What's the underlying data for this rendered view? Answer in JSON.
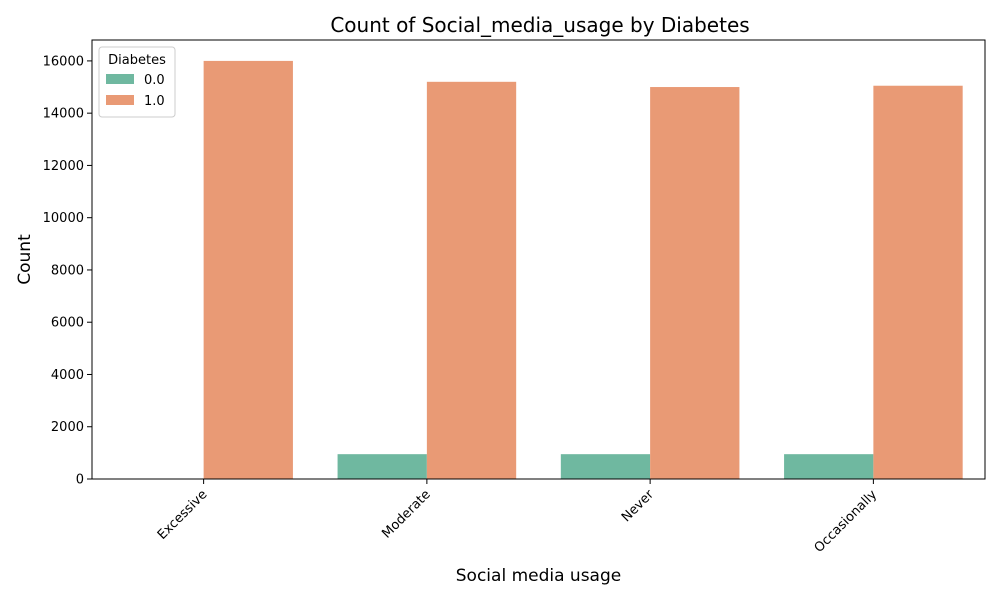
{
  "chart_data": {
    "type": "bar",
    "title": "Count of Social_media_usage by Diabetes",
    "xlabel": "Social media usage",
    "ylabel": "Count",
    "categories": [
      "Excessive",
      "Moderate",
      "Never",
      "Occasionally"
    ],
    "series": [
      {
        "name": "0.0",
        "color": "#6fb8a0",
        "values": [
          0,
          950,
          950,
          950
        ]
      },
      {
        "name": "1.0",
        "color": "#e99a75",
        "values": [
          16000,
          15200,
          15000,
          15050
        ]
      }
    ],
    "ylim": [
      0,
      16800
    ],
    "yticks": [
      0,
      2000,
      4000,
      6000,
      8000,
      10000,
      12000,
      14000,
      16000
    ],
    "grid": false,
    "legend": {
      "title": "Diabetes",
      "placement": "top-left"
    }
  }
}
